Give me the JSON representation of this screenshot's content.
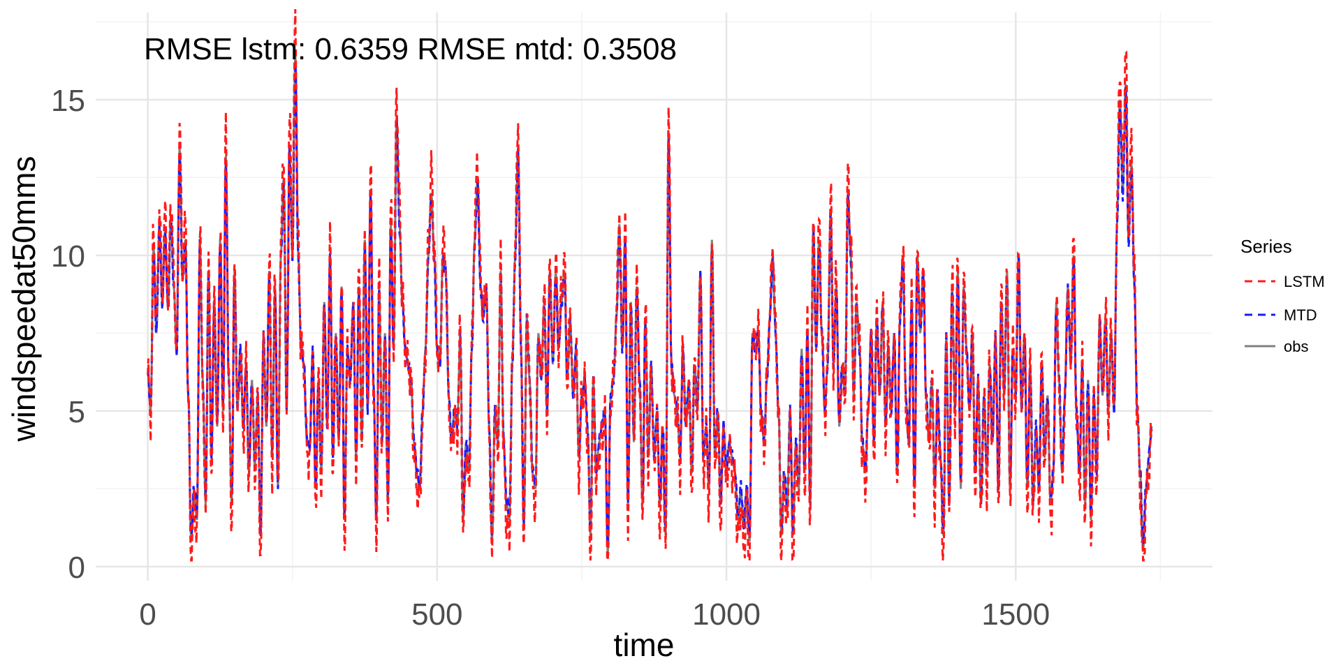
{
  "chart_data": {
    "type": "line",
    "title": "",
    "annotation": "RMSE lstm: 0.6359 RMSE mtd: 0.3508",
    "xlabel": "time",
    "ylabel": "windspeedat50mms",
    "xlim": [
      -90,
      1840
    ],
    "ylim": [
      -0.45,
      17.8
    ],
    "x_ticks": [
      0,
      500,
      1000,
      1500
    ],
    "y_ticks": [
      0,
      5,
      10,
      15
    ],
    "grid": true,
    "legend": {
      "title": "Series",
      "position": "right",
      "entries": [
        {
          "label": "LSTM",
          "color": "#ff1a1a",
          "dash": "dashed"
        },
        {
          "label": "MTD",
          "color": "#1a1aff",
          "dash": "dashed"
        },
        {
          "label": "obs",
          "color": "#808080",
          "dash": "solid"
        }
      ]
    },
    "x_range": [
      0,
      1750
    ],
    "obs_anchors": [
      [
        0,
        6.2
      ],
      [
        5,
        5.0
      ],
      [
        10,
        10.3
      ],
      [
        15,
        7.5
      ],
      [
        20,
        11.0
      ],
      [
        25,
        8.5
      ],
      [
        30,
        10.8
      ],
      [
        35,
        8.3
      ],
      [
        40,
        11.3
      ],
      [
        45,
        9.0
      ],
      [
        50,
        6.8
      ],
      [
        55,
        13.5
      ],
      [
        60,
        9.2
      ],
      [
        65,
        10.5
      ],
      [
        70,
        5.5
      ],
      [
        75,
        0.8
      ],
      [
        80,
        2.5
      ],
      [
        85,
        1.5
      ],
      [
        90,
        10.5
      ],
      [
        95,
        6.0
      ],
      [
        100,
        2.0
      ],
      [
        105,
        9.5
      ],
      [
        110,
        3.5
      ],
      [
        115,
        8.5
      ],
      [
        120,
        4.5
      ],
      [
        125,
        10.5
      ],
      [
        130,
        5.0
      ],
      [
        135,
        13.2
      ],
      [
        140,
        6.0
      ],
      [
        145,
        2.0
      ],
      [
        150,
        9.5
      ],
      [
        155,
        5.0
      ],
      [
        160,
        7.0
      ],
      [
        165,
        4.5
      ],
      [
        170,
        6.5
      ],
      [
        175,
        3.0
      ],
      [
        180,
        6.0
      ],
      [
        185,
        3.2
      ],
      [
        190,
        5.5
      ],
      [
        195,
        1.0
      ],
      [
        200,
        7.5
      ],
      [
        205,
        4.5
      ],
      [
        210,
        9.5
      ],
      [
        215,
        3.5
      ],
      [
        220,
        9.0
      ],
      [
        225,
        2.5
      ],
      [
        230,
        10.0
      ],
      [
        235,
        12.5
      ],
      [
        240,
        5.0
      ],
      [
        245,
        13.5
      ],
      [
        250,
        10.0
      ],
      [
        255,
        16.5
      ],
      [
        260,
        10.0
      ],
      [
        265,
        7.0
      ],
      [
        270,
        6.5
      ],
      [
        275,
        4.0
      ],
      [
        280,
        3.8
      ],
      [
        285,
        7.0
      ],
      [
        290,
        2.5
      ],
      [
        295,
        6.0
      ],
      [
        300,
        3.0
      ],
      [
        305,
        8.5
      ],
      [
        310,
        4.5
      ],
      [
        315,
        10.0
      ],
      [
        320,
        3.5
      ],
      [
        325,
        7.5
      ],
      [
        330,
        4.0
      ],
      [
        335,
        9.0
      ],
      [
        340,
        1.5
      ],
      [
        345,
        7.0
      ],
      [
        350,
        6.0
      ],
      [
        355,
        8.5
      ],
      [
        360,
        3.5
      ],
      [
        365,
        9.0
      ],
      [
        370,
        4.0
      ],
      [
        375,
        10.5
      ],
      [
        380,
        5.0
      ],
      [
        385,
        12.0
      ],
      [
        390,
        6.0
      ],
      [
        395,
        1.5
      ],
      [
        400,
        9.0
      ],
      [
        405,
        4.0
      ],
      [
        410,
        7.5
      ],
      [
        415,
        2.0
      ],
      [
        420,
        11.0
      ],
      [
        425,
        7.0
      ],
      [
        430,
        14.5
      ],
      [
        435,
        11.0
      ],
      [
        440,
        8.5
      ],
      [
        445,
        7.0
      ],
      [
        450,
        6.5
      ],
      [
        455,
        6.0
      ],
      [
        460,
        4.0
      ],
      [
        465,
        3.0
      ],
      [
        470,
        2.5
      ],
      [
        475,
        5.0
      ],
      [
        480,
        7.0
      ],
      [
        485,
        10.0
      ],
      [
        490,
        12.0
      ],
      [
        495,
        10.0
      ],
      [
        500,
        7.0
      ],
      [
        505,
        6.5
      ],
      [
        510,
        10.0
      ],
      [
        515,
        9.5
      ],
      [
        520,
        5.5
      ],
      [
        525,
        4.0
      ],
      [
        530,
        5.0
      ],
      [
        535,
        4.5
      ],
      [
        540,
        7.5
      ],
      [
        545,
        1.5
      ],
      [
        550,
        4.0
      ],
      [
        555,
        3.0
      ],
      [
        560,
        7.0
      ],
      [
        565,
        10.5
      ],
      [
        570,
        12.5
      ],
      [
        575,
        9.0
      ],
      [
        580,
        8.0
      ],
      [
        585,
        9.0
      ],
      [
        590,
        4.5
      ],
      [
        595,
        0.8
      ],
      [
        600,
        5.0
      ],
      [
        605,
        4.0
      ],
      [
        610,
        9.5
      ],
      [
        615,
        4.0
      ],
      [
        620,
        2.0
      ],
      [
        625,
        1.5
      ],
      [
        630,
        6.5
      ],
      [
        635,
        10.0
      ],
      [
        640,
        13.5
      ],
      [
        645,
        7.0
      ],
      [
        650,
        1.2
      ],
      [
        655,
        8.0
      ],
      [
        660,
        6.0
      ],
      [
        665,
        3.0
      ],
      [
        670,
        2.5
      ],
      [
        675,
        7.5
      ],
      [
        680,
        6.0
      ],
      [
        685,
        8.5
      ],
      [
        690,
        5.0
      ],
      [
        695,
        9.5
      ],
      [
        700,
        6.5
      ],
      [
        705,
        9.5
      ],
      [
        710,
        7.0
      ],
      [
        715,
        8.5
      ],
      [
        720,
        9.5
      ],
      [
        725,
        6.0
      ],
      [
        730,
        8.0
      ],
      [
        735,
        5.5
      ],
      [
        740,
        7.0
      ],
      [
        745,
        3.5
      ],
      [
        750,
        5.5
      ],
      [
        755,
        6.0
      ],
      [
        760,
        4.5
      ],
      [
        765,
        1.0
      ],
      [
        770,
        6.0
      ],
      [
        775,
        3.0
      ],
      [
        780,
        4.0
      ],
      [
        785,
        4.5
      ],
      [
        790,
        5.0
      ],
      [
        795,
        0.4
      ],
      [
        800,
        5.5
      ],
      [
        805,
        6.0
      ],
      [
        810,
        8.0
      ],
      [
        815,
        11.0
      ],
      [
        820,
        7.0
      ],
      [
        825,
        10.5
      ],
      [
        830,
        2.0
      ],
      [
        835,
        8.5
      ],
      [
        840,
        4.0
      ],
      [
        845,
        9.0
      ],
      [
        850,
        6.0
      ],
      [
        855,
        2.0
      ],
      [
        860,
        8.0
      ],
      [
        865,
        3.5
      ],
      [
        870,
        6.5
      ],
      [
        875,
        3.5
      ],
      [
        880,
        5.0
      ],
      [
        885,
        2.0
      ],
      [
        890,
        4.5
      ],
      [
        895,
        1.0
      ],
      [
        900,
        14.0
      ],
      [
        905,
        6.5
      ],
      [
        910,
        5.5
      ],
      [
        915,
        5.0
      ],
      [
        920,
        3.5
      ],
      [
        925,
        7.0
      ],
      [
        930,
        4.5
      ],
      [
        935,
        6.0
      ],
      [
        940,
        3.0
      ],
      [
        945,
        6.5
      ],
      [
        950,
        5.0
      ],
      [
        955,
        9.5
      ],
      [
        960,
        3.5
      ],
      [
        965,
        4.5
      ],
      [
        970,
        2.5
      ],
      [
        975,
        10.5
      ],
      [
        980,
        3.5
      ],
      [
        985,
        5.0
      ],
      [
        990,
        2.0
      ],
      [
        995,
        4.5
      ],
      [
        1000,
        3.0
      ],
      [
        1005,
        4.0
      ],
      [
        1010,
        3.5
      ],
      [
        1015,
        3.0
      ],
      [
        1020,
        1.5
      ],
      [
        1025,
        2.5
      ],
      [
        1030,
        1.2
      ],
      [
        1035,
        2.5
      ],
      [
        1040,
        0.8
      ],
      [
        1045,
        7.5
      ],
      [
        1050,
        7.0
      ],
      [
        1055,
        7.5
      ],
      [
        1060,
        5.0
      ],
      [
        1065,
        4.0
      ],
      [
        1070,
        6.0
      ],
      [
        1075,
        8.0
      ],
      [
        1080,
        10.0
      ],
      [
        1085,
        7.5
      ],
      [
        1090,
        5.0
      ],
      [
        1095,
        1.0
      ],
      [
        1100,
        3.0
      ],
      [
        1105,
        1.8
      ],
      [
        1110,
        5.0
      ],
      [
        1115,
        1.0
      ],
      [
        1120,
        4.0
      ],
      [
        1125,
        2.5
      ],
      [
        1130,
        7.0
      ],
      [
        1135,
        3.0
      ],
      [
        1140,
        7.5
      ],
      [
        1145,
        2.0
      ],
      [
        1150,
        11.0
      ],
      [
        1155,
        7.0
      ],
      [
        1160,
        10.5
      ],
      [
        1165,
        7.5
      ],
      [
        1170,
        5.0
      ],
      [
        1175,
        6.5
      ],
      [
        1180,
        11.5
      ],
      [
        1185,
        6.5
      ],
      [
        1190,
        9.0
      ],
      [
        1195,
        4.5
      ],
      [
        1200,
        6.5
      ],
      [
        1205,
        5.5
      ],
      [
        1210,
        12.0
      ],
      [
        1215,
        10.0
      ],
      [
        1220,
        5.5
      ],
      [
        1225,
        8.5
      ],
      [
        1230,
        7.0
      ],
      [
        1235,
        4.0
      ],
      [
        1240,
        3.0
      ],
      [
        1245,
        5.0
      ],
      [
        1250,
        7.5
      ],
      [
        1255,
        4.0
      ],
      [
        1260,
        8.0
      ],
      [
        1265,
        5.5
      ],
      [
        1270,
        8.5
      ],
      [
        1275,
        4.5
      ],
      [
        1280,
        7.0
      ],
      [
        1285,
        5.0
      ],
      [
        1290,
        7.5
      ],
      [
        1295,
        3.0
      ],
      [
        1300,
        8.0
      ],
      [
        1305,
        10.0
      ],
      [
        1310,
        5.5
      ],
      [
        1315,
        4.0
      ],
      [
        1320,
        8.5
      ],
      [
        1325,
        2.5
      ],
      [
        1330,
        10.0
      ],
      [
        1335,
        7.5
      ],
      [
        1340,
        9.5
      ],
      [
        1345,
        5.5
      ],
      [
        1350,
        4.0
      ],
      [
        1355,
        6.0
      ],
      [
        1360,
        2.5
      ],
      [
        1365,
        5.5
      ],
      [
        1370,
        3.5
      ],
      [
        1375,
        1.0
      ],
      [
        1380,
        7.5
      ],
      [
        1385,
        2.0
      ],
      [
        1390,
        9.0
      ],
      [
        1395,
        5.0
      ],
      [
        1400,
        9.5
      ],
      [
        1405,
        2.5
      ],
      [
        1410,
        9.0
      ],
      [
        1415,
        7.0
      ],
      [
        1420,
        5.0
      ],
      [
        1425,
        7.5
      ],
      [
        1430,
        3.0
      ],
      [
        1435,
        6.0
      ],
      [
        1440,
        2.0
      ],
      [
        1445,
        5.5
      ],
      [
        1450,
        3.0
      ],
      [
        1455,
        6.5
      ],
      [
        1460,
        4.0
      ],
      [
        1465,
        7.5
      ],
      [
        1470,
        2.5
      ],
      [
        1475,
        8.5
      ],
      [
        1480,
        5.5
      ],
      [
        1485,
        9.5
      ],
      [
        1490,
        2.5
      ],
      [
        1495,
        7.0
      ],
      [
        1500,
        5.5
      ],
      [
        1505,
        10.0
      ],
      [
        1510,
        5.0
      ],
      [
        1515,
        7.5
      ],
      [
        1520,
        2.5
      ],
      [
        1525,
        6.5
      ],
      [
        1530,
        2.0
      ],
      [
        1535,
        4.5
      ],
      [
        1540,
        2.5
      ],
      [
        1545,
        6.5
      ],
      [
        1550,
        3.5
      ],
      [
        1555,
        5.5
      ],
      [
        1560,
        2.0
      ],
      [
        1565,
        3.0
      ],
      [
        1570,
        8.5
      ],
      [
        1575,
        6.0
      ],
      [
        1580,
        3.0
      ],
      [
        1585,
        5.5
      ],
      [
        1590,
        9.0
      ],
      [
        1595,
        6.5
      ],
      [
        1600,
        10.0
      ],
      [
        1605,
        5.0
      ],
      [
        1610,
        3.0
      ],
      [
        1615,
        6.5
      ],
      [
        1620,
        2.0
      ],
      [
        1625,
        6.0
      ],
      [
        1630,
        1.5
      ],
      [
        1635,
        5.5
      ],
      [
        1640,
        3.0
      ],
      [
        1645,
        8.0
      ],
      [
        1650,
        5.5
      ],
      [
        1655,
        8.0
      ],
      [
        1660,
        5.0
      ],
      [
        1665,
        7.5
      ],
      [
        1670,
        5.0
      ],
      [
        1675,
        11.0
      ],
      [
        1680,
        15.0
      ],
      [
        1685,
        12.0
      ],
      [
        1690,
        15.5
      ],
      [
        1695,
        10.5
      ],
      [
        1700,
        13.0
      ],
      [
        1705,
        9.0
      ],
      [
        1710,
        5.0
      ],
      [
        1715,
        3.0
      ],
      [
        1720,
        0.5
      ],
      [
        1725,
        2.5
      ],
      [
        1730,
        3.5
      ],
      [
        1735,
        4.5
      ]
    ]
  }
}
